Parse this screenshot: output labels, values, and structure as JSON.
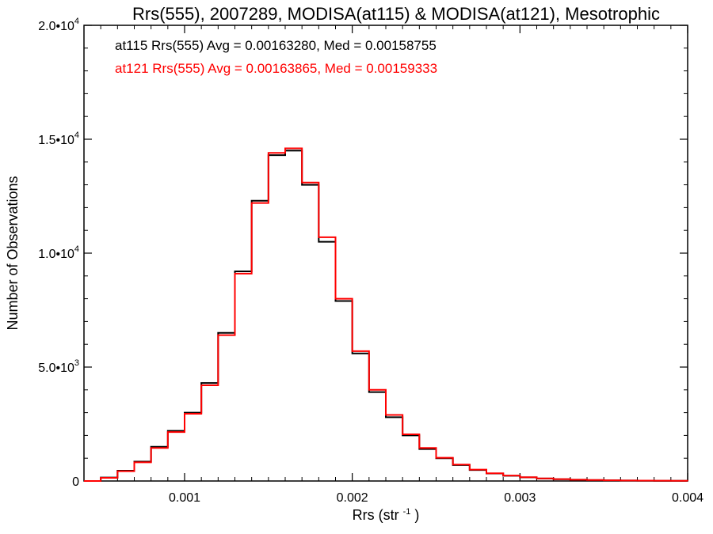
{
  "chart_data": {
    "type": "line",
    "title": "Rrs(555), 2007289, MODISA(at115) & MODISA(at121), Mesotrophic",
    "xlabel": "Rrs (str",
    "xlabel_sup": "-1",
    "xlabel_close": ")",
    "ylabel": "Number of Observations",
    "xlim": [
      0.0004,
      0.004
    ],
    "ylim": [
      0,
      20000
    ],
    "x_ticks": [
      {
        "value": 0.001,
        "label": "0.001"
      },
      {
        "value": 0.002,
        "label": "0.002"
      },
      {
        "value": 0.003,
        "label": "0.003"
      },
      {
        "value": 0.004,
        "label": "0.004"
      }
    ],
    "y_ticks": [
      {
        "value": 0,
        "label": "0",
        "sup": ""
      },
      {
        "value": 5000,
        "label": "5.0•10",
        "sup": "3"
      },
      {
        "value": 10000,
        "label": "1.0•10",
        "sup": "4"
      },
      {
        "value": 15000,
        "label": "1.5•10",
        "sup": "4"
      },
      {
        "value": 20000,
        "label": "2.0•10",
        "sup": "4"
      }
    ],
    "annotations": [
      "at115 Rrs(555) Avg = 0.00163280, Med = 0.00158755",
      "at121 Rrs(555) Avg = 0.00163865, Med = 0.00159333"
    ],
    "series": [
      {
        "color": "#000000",
        "x": [
          0.0004,
          0.0005,
          0.0006,
          0.0007,
          0.0008,
          0.0009,
          0.001,
          0.0011,
          0.0012,
          0.0013,
          0.0014,
          0.0015,
          0.0016,
          0.0017,
          0.0018,
          0.0019,
          0.002,
          0.0021,
          0.0022,
          0.0023,
          0.0024,
          0.0025,
          0.0026,
          0.0027,
          0.0028,
          0.0029,
          0.003,
          0.0031,
          0.0032,
          0.0033,
          0.0034,
          0.0035,
          0.0036,
          0.0037,
          0.0038,
          0.0039,
          0.004
        ],
        "y": [
          0,
          150,
          450,
          850,
          1500,
          2200,
          3000,
          4300,
          6500,
          9200,
          12300,
          14300,
          14500,
          13000,
          10500,
          7900,
          5600,
          3900,
          2800,
          2000,
          1400,
          1000,
          700,
          480,
          330,
          230,
          160,
          110,
          80,
          55,
          40,
          30,
          20,
          15,
          10,
          8,
          5
        ]
      },
      {
        "color": "#ff0000",
        "x": [
          0.0004,
          0.0005,
          0.0006,
          0.0007,
          0.0008,
          0.0009,
          0.001,
          0.0011,
          0.0012,
          0.0013,
          0.0014,
          0.0015,
          0.0016,
          0.0017,
          0.0018,
          0.0019,
          0.002,
          0.0021,
          0.0022,
          0.0023,
          0.0024,
          0.0025,
          0.0026,
          0.0027,
          0.0028,
          0.0029,
          0.003,
          0.0031,
          0.0032,
          0.0033,
          0.0034,
          0.0035,
          0.0036,
          0.0037,
          0.0038,
          0.0039,
          0.004
        ],
        "y": [
          0,
          140,
          430,
          820,
          1450,
          2150,
          2950,
          4200,
          6400,
          9100,
          12200,
          14400,
          14600,
          13100,
          10700,
          8000,
          5700,
          4000,
          2900,
          2050,
          1450,
          1020,
          720,
          500,
          340,
          240,
          165,
          115,
          82,
          58,
          42,
          31,
          21,
          16,
          11,
          8,
          5
        ]
      }
    ]
  }
}
